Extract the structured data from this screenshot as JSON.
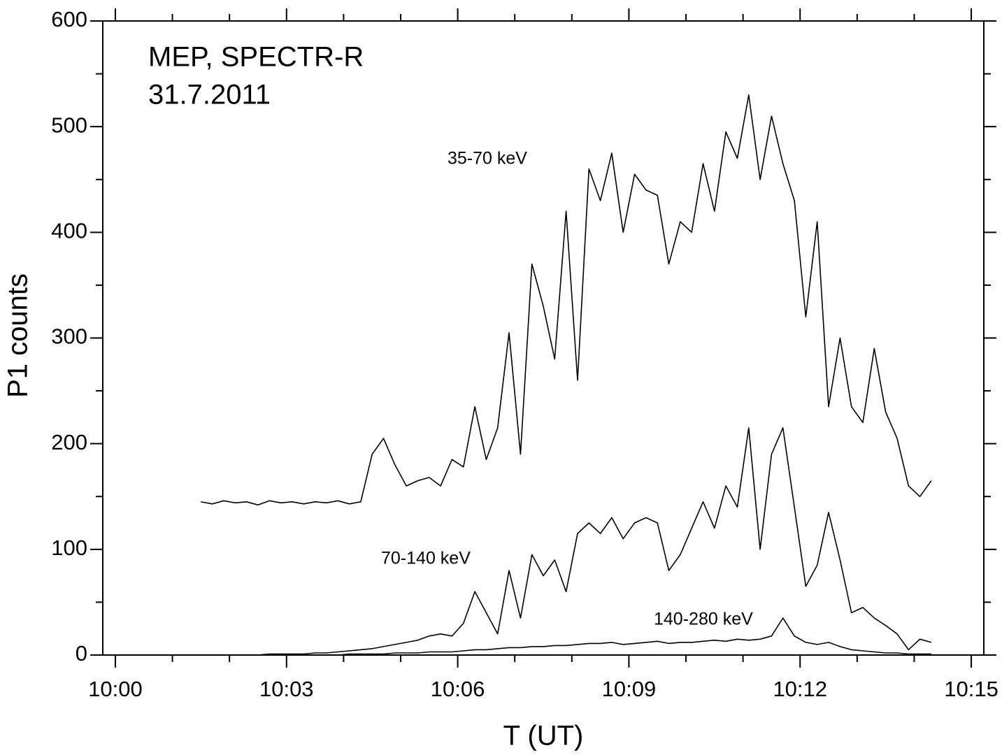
{
  "chart_data": {
    "type": "line",
    "annotations": [
      "MEP, SPECTR-R",
      "31.7.2011"
    ],
    "xlabel": "T (UT)",
    "ylabel": "P1 counts",
    "x": [
      1.5,
      1.7,
      1.9,
      2.1,
      2.3,
      2.5,
      2.7,
      2.9,
      3.1,
      3.3,
      3.5,
      3.7,
      3.9,
      4.1,
      4.3,
      4.5,
      4.7,
      4.9,
      5.1,
      5.3,
      5.5,
      5.7,
      5.9,
      6.1,
      6.3,
      6.5,
      6.7,
      6.9,
      7.1,
      7.3,
      7.5,
      7.7,
      7.9,
      8.1,
      8.3,
      8.5,
      8.7,
      8.9,
      9.1,
      9.3,
      9.5,
      9.7,
      9.9,
      10.1,
      10.3,
      10.5,
      10.7,
      10.9,
      11.1,
      11.3,
      11.5,
      11.7,
      11.9,
      12.1,
      12.3,
      12.5,
      12.7,
      12.9,
      13.1,
      13.3,
      13.5,
      13.7,
      13.9,
      14.1,
      14.3
    ],
    "series": [
      {
        "name": "35-70 keV",
        "color": "#000000",
        "values": [
          145,
          143,
          146,
          144,
          145,
          142,
          146,
          144,
          145,
          143,
          145,
          144,
          146,
          143,
          145,
          190,
          205,
          180,
          160,
          165,
          168,
          160,
          185,
          178,
          235,
          185,
          215,
          305,
          190,
          370,
          330,
          280,
          420,
          260,
          460,
          430,
          475,
          400,
          455,
          440,
          435,
          370,
          410,
          400,
          465,
          420,
          495,
          470,
          530,
          450,
          510,
          465,
          430,
          320,
          410,
          235,
          300,
          235,
          220,
          290,
          230,
          205,
          160,
          150,
          165
        ]
      },
      {
        "name": "70-140 keV",
        "color": "#000000",
        "values": [
          0,
          0,
          0,
          0,
          0,
          0,
          1,
          1,
          1,
          1,
          2,
          2,
          3,
          4,
          5,
          6,
          8,
          10,
          12,
          14,
          18,
          20,
          18,
          30,
          60,
          40,
          20,
          80,
          35,
          95,
          75,
          90,
          60,
          115,
          125,
          115,
          130,
          110,
          125,
          130,
          125,
          80,
          95,
          120,
          145,
          120,
          160,
          140,
          215,
          100,
          190,
          215,
          140,
          65,
          85,
          135,
          90,
          40,
          45,
          35,
          28,
          20,
          5,
          15,
          12
        ]
      },
      {
        "name": "140-280 keV",
        "color": "#000000",
        "values": [
          0,
          0,
          0,
          0,
          0,
          0,
          0,
          0,
          0,
          0,
          0,
          0,
          0,
          1,
          1,
          1,
          1,
          2,
          2,
          2,
          3,
          3,
          3,
          4,
          5,
          5,
          6,
          7,
          7,
          8,
          8,
          9,
          9,
          10,
          11,
          11,
          12,
          10,
          11,
          12,
          13,
          11,
          12,
          12,
          13,
          14,
          13,
          15,
          14,
          15,
          18,
          35,
          18,
          12,
          10,
          12,
          8,
          5,
          4,
          3,
          2,
          2,
          1,
          1,
          1
        ]
      }
    ],
    "xlim": [
      -0.22,
      15.22
    ],
    "xticks": [
      {
        "value": 0,
        "label": "10:00"
      },
      {
        "value": 3,
        "label": "10:03"
      },
      {
        "value": 6,
        "label": "10:06"
      },
      {
        "value": 9,
        "label": "10:09"
      },
      {
        "value": 12,
        "label": "10:12"
      },
      {
        "value": 15,
        "label": "10:15"
      }
    ],
    "xminorticks": [
      1,
      2,
      4,
      5,
      7,
      8,
      10,
      11,
      13,
      14
    ],
    "ylim": [
      0,
      600
    ],
    "yticks": [
      0,
      100,
      200,
      300,
      400,
      500,
      600
    ],
    "yminorticks": [
      50,
      150,
      250,
      350,
      450,
      550
    ]
  }
}
